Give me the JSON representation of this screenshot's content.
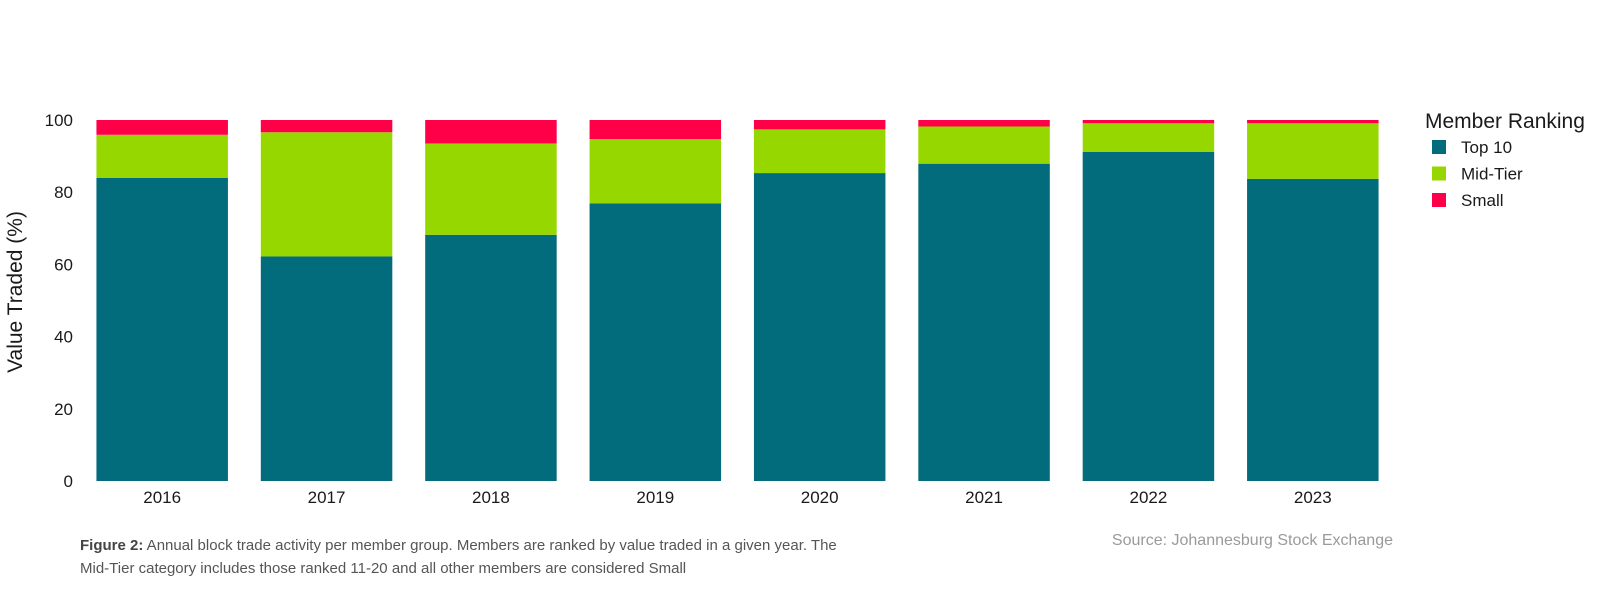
{
  "chart_data": {
    "type": "bar",
    "stacked": true,
    "categories": [
      "2016",
      "2017",
      "2018",
      "2019",
      "2020",
      "2021",
      "2022",
      "2023"
    ],
    "series": [
      {
        "name": "Top 10",
        "color": "#036c7c",
        "values": [
          84.0,
          62.2,
          68.2,
          76.9,
          85.3,
          87.9,
          91.2,
          83.7
        ]
      },
      {
        "name": "Mid-Tier",
        "color": "#97d700",
        "values": [
          11.9,
          34.4,
          25.3,
          17.8,
          12.1,
          10.3,
          7.9,
          15.4
        ]
      },
      {
        "name": "Small",
        "color": "#ff0048",
        "values": [
          4.1,
          3.4,
          6.5,
          5.3,
          2.6,
          1.8,
          0.9,
          0.9
        ]
      }
    ],
    "ylabel": "Value Traded (%)",
    "ylim": [
      0,
      100
    ],
    "yticks": [
      0,
      20,
      40,
      60,
      80,
      100
    ],
    "grid": false,
    "legend": {
      "title": "Member Ranking",
      "placement": "right"
    }
  },
  "caption": {
    "label": "Figure 2:",
    "text": " Annual block trade activity per member group. Members are ranked by value traded in a given year. The Mid-Tier category includes those ranked 11-20 and all other members are considered Small"
  },
  "source": "Source: Johannesburg Stock Exchange"
}
